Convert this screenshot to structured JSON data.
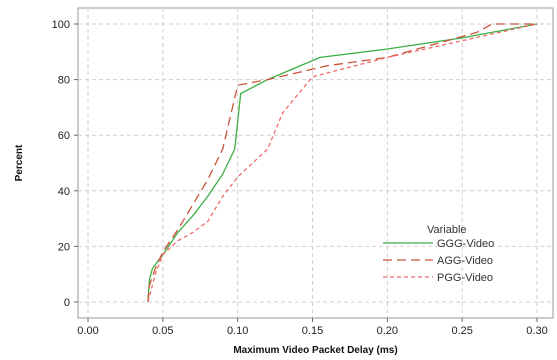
{
  "chart_data": {
    "type": "line",
    "title": "",
    "xlabel": "Maximum Video Packet Delay (ms)",
    "ylabel": "Percent",
    "xlim": [
      0.0,
      0.3
    ],
    "ylim": [
      0,
      100
    ],
    "x_ticks": [
      "0.00",
      "0.05",
      "0.10",
      "0.15",
      "0.20",
      "0.25",
      "0.30"
    ],
    "y_ticks": [
      "0",
      "20",
      "40",
      "60",
      "80",
      "100"
    ],
    "grid": true,
    "legend": {
      "title": "Variable",
      "position": "bottom-right"
    },
    "series": [
      {
        "name": "GGG-Video",
        "color": "#3cb043",
        "dash": "solid",
        "points": [
          [
            0.04,
            0
          ],
          [
            0.041,
            8
          ],
          [
            0.043,
            12
          ],
          [
            0.05,
            17
          ],
          [
            0.06,
            25
          ],
          [
            0.07,
            31
          ],
          [
            0.08,
            38
          ],
          [
            0.09,
            46
          ],
          [
            0.098,
            55
          ],
          [
            0.101,
            70
          ],
          [
            0.102,
            75
          ],
          [
            0.12,
            80
          ],
          [
            0.155,
            88
          ],
          [
            0.2,
            91
          ],
          [
            0.25,
            95
          ],
          [
            0.3,
            100
          ]
        ]
      },
      {
        "name": "AGG-Video",
        "color": "#c8553d",
        "dash": "long-dash",
        "points": [
          [
            0.04,
            0
          ],
          [
            0.041,
            6
          ],
          [
            0.045,
            12
          ],
          [
            0.05,
            18
          ],
          [
            0.06,
            26
          ],
          [
            0.07,
            35
          ],
          [
            0.08,
            44
          ],
          [
            0.09,
            55
          ],
          [
            0.1,
            78
          ],
          [
            0.12,
            80
          ],
          [
            0.16,
            85
          ],
          [
            0.2,
            88
          ],
          [
            0.26,
            97
          ],
          [
            0.27,
            100
          ],
          [
            0.3,
            100
          ]
        ]
      },
      {
        "name": "PGG-Video",
        "color": "#f26b6b",
        "dash": "short-dash",
        "points": [
          [
            0.04,
            0
          ],
          [
            0.042,
            4
          ],
          [
            0.045,
            10
          ],
          [
            0.05,
            17
          ],
          [
            0.06,
            22
          ],
          [
            0.07,
            25
          ],
          [
            0.08,
            29
          ],
          [
            0.09,
            38
          ],
          [
            0.1,
            45
          ],
          [
            0.12,
            55
          ],
          [
            0.13,
            68
          ],
          [
            0.15,
            81
          ],
          [
            0.2,
            88
          ],
          [
            0.25,
            94
          ],
          [
            0.3,
            100
          ]
        ]
      }
    ]
  }
}
